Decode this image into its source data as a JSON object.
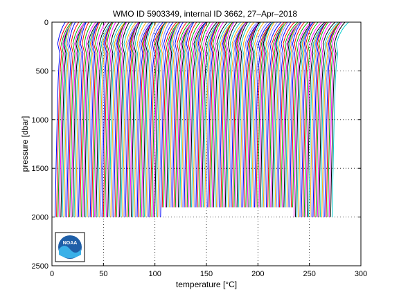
{
  "chart_data": {
    "type": "line",
    "title": "WMO ID 5903349, internal ID 3662, 27–Apr–2018",
    "xlabel": "temperature [°C]",
    "ylabel": "pressure [dbar]",
    "xlim": [
      0,
      300
    ],
    "ylim": [
      2500,
      0
    ],
    "y_reversed": true,
    "grid": "dotted",
    "x_ticks": [
      "0",
      "50",
      "100",
      "150",
      "200",
      "250",
      "300"
    ],
    "y_ticks": [
      "0",
      "500",
      "1000",
      "1500",
      "2000",
      "2500"
    ],
    "x_tick_values": [
      0,
      50,
      100,
      150,
      200,
      250,
      300
    ],
    "y_tick_values": [
      0,
      500,
      1000,
      1500,
      2000,
      2500
    ],
    "profile_series": {
      "count": 190,
      "first_surface_temp": 13,
      "last_surface_temp": 287,
      "first_deep_temp": 3,
      "last_deep_temp": 272,
      "colors": [
        "#0000ff",
        "#ff0000",
        "#00aa00",
        "#ff00ff",
        "#000000",
        "#00cccc",
        "#ffaa00",
        "#7777ff"
      ]
    },
    "shallow_profile_range": {
      "temp_start": 118,
      "temp_end": 248,
      "max_pressure": 1900
    },
    "logo": {
      "text": "NOAA",
      "position": "bottom-left"
    }
  }
}
